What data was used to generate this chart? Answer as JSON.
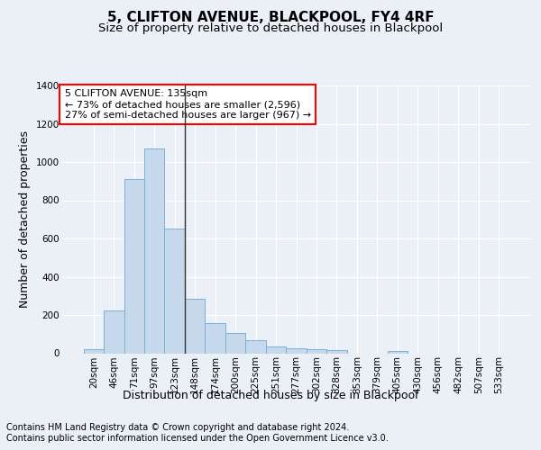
{
  "title": "5, CLIFTON AVENUE, BLACKPOOL, FY4 4RF",
  "subtitle": "Size of property relative to detached houses in Blackpool",
  "xlabel": "Distribution of detached houses by size in Blackpool",
  "ylabel": "Number of detached properties",
  "categories": [
    "20sqm",
    "46sqm",
    "71sqm",
    "97sqm",
    "123sqm",
    "148sqm",
    "174sqm",
    "200sqm",
    "225sqm",
    "251sqm",
    "277sqm",
    "302sqm",
    "328sqm",
    "353sqm",
    "379sqm",
    "405sqm",
    "430sqm",
    "456sqm",
    "482sqm",
    "507sqm",
    "533sqm"
  ],
  "values": [
    20,
    225,
    910,
    1070,
    650,
    285,
    160,
    107,
    70,
    37,
    27,
    20,
    15,
    0,
    0,
    13,
    0,
    0,
    0,
    0,
    0
  ],
  "bar_color": "#c5d8ec",
  "bar_edge_color": "#7aafd4",
  "highlight_index": 4,
  "highlight_line_color": "#333333",
  "ylim": [
    0,
    1400
  ],
  "yticks": [
    0,
    200,
    400,
    600,
    800,
    1000,
    1200,
    1400
  ],
  "annotation_box_text": "5 CLIFTON AVENUE: 135sqm\n← 73% of detached houses are smaller (2,596)\n27% of semi-detached houses are larger (967) →",
  "bg_color": "#eaf0f6",
  "plot_bg_color": "#eaf0f6",
  "grid_color": "#ffffff",
  "footer_line1": "Contains HM Land Registry data © Crown copyright and database right 2024.",
  "footer_line2": "Contains public sector information licensed under the Open Government Licence v3.0.",
  "title_fontsize": 11,
  "subtitle_fontsize": 9.5,
  "axis_label_fontsize": 9,
  "tick_fontsize": 7.5,
  "annotation_fontsize": 8,
  "footer_fontsize": 7
}
